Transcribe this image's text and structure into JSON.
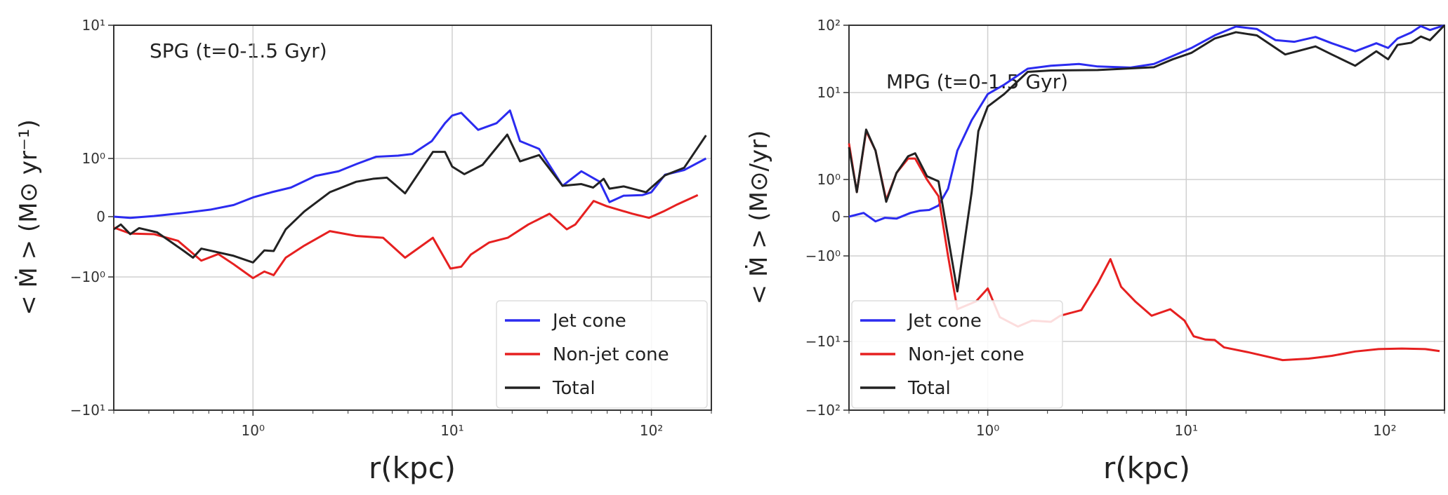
{
  "chart_data": [
    {
      "type": "line",
      "title": "SPG (t=0-1.5 Gyr)",
      "xlabel": "r(kpc)",
      "ylabel": "< Ṁ >  (M⊙ yr⁻¹)",
      "xscale": "log",
      "yscale": "symlog",
      "xlim": [
        0.2,
        200
      ],
      "ylim": [
        -10,
        10
      ],
      "xticks": [
        "10⁰",
        "10¹",
        "10²"
      ],
      "yticks": [
        "10¹",
        "10⁰",
        "0",
        "−10⁰",
        "−10¹"
      ],
      "grid": true,
      "legend_placement": "lower-right",
      "series": [
        {
          "name": "Jet cone",
          "color": "#2b2bf0",
          "x": [
            0.198,
            0.242,
            0.318,
            0.465,
            0.61,
            0.8,
            1,
            1.24,
            1.55,
            2.06,
            2.69,
            3.34,
            4.15,
            5.35,
            6.3,
            7.9,
            9.2,
            10,
            11.1,
            13.5,
            16.7,
            19.5,
            21.9,
            27.3,
            35.8,
            44.5,
            55,
            61.6,
            72.5,
            90,
            100,
            117,
            146,
            188
          ],
          "y": [
            0,
            -0.02,
            0.01,
            0.07,
            0.12,
            0.2,
            0.33,
            0.42,
            0.5,
            0.7,
            0.78,
            0.91,
            1.03,
            1.05,
            1.08,
            1.35,
            1.84,
            2.1,
            2.2,
            1.64,
            1.84,
            2.29,
            1.35,
            1.18,
            0.53,
            0.78,
            0.6,
            0.25,
            0.36,
            0.37,
            0.42,
            0.72,
            0.8,
            1.0
          ]
        },
        {
          "name": "Non-jet cone",
          "color": "#e62020",
          "x": [
            0.198,
            0.242,
            0.318,
            0.42,
            0.55,
            0.67,
            0.8,
            1,
            1.14,
            1.27,
            1.46,
            1.81,
            2.43,
            3.3,
            4.5,
            5.8,
            8,
            9.8,
            11.1,
            12.4,
            15.3,
            19,
            24.1,
            30.8,
            37.6,
            41.5,
            51.3,
            59.6,
            80.2,
            97.2,
            115,
            133,
            171
          ],
          "y": [
            -0.18,
            -0.28,
            -0.29,
            -0.4,
            -0.73,
            -0.62,
            -0.79,
            -1.02,
            -0.91,
            -0.97,
            -0.68,
            -0.48,
            -0.24,
            -0.32,
            -0.35,
            -0.68,
            -0.35,
            -0.86,
            -0.83,
            -0.63,
            -0.43,
            -0.35,
            -0.13,
            0.05,
            -0.21,
            -0.13,
            0.27,
            0.18,
            0.05,
            -0.02,
            0.09,
            0.2,
            0.37
          ]
        },
        {
          "name": "Total",
          "color": "#222222",
          "x": [
            0.198,
            0.217,
            0.242,
            0.268,
            0.33,
            0.38,
            0.45,
            0.5,
            0.55,
            0.8,
            1,
            1.14,
            1.27,
            1.46,
            1.81,
            2.43,
            3.3,
            4,
            4.7,
            5.8,
            8,
            9.2,
            10,
            11.5,
            14.2,
            18.9,
            21.9,
            27.3,
            35.8,
            44.5,
            51,
            57.6,
            61.6,
            72.5,
            94,
            117,
            146,
            188
          ],
          "y": [
            -0.21,
            -0.13,
            -0.29,
            -0.19,
            -0.26,
            -0.4,
            -0.57,
            -0.68,
            -0.53,
            -0.65,
            -0.76,
            -0.56,
            -0.57,
            -0.21,
            0.09,
            0.42,
            0.6,
            0.65,
            0.67,
            0.4,
            1.12,
            1.12,
            0.86,
            0.73,
            0.89,
            1.51,
            0.95,
            1.06,
            0.53,
            0.56,
            0.5,
            0.65,
            0.48,
            0.52,
            0.42,
            0.71,
            0.84,
            1.49
          ]
        }
      ]
    },
    {
      "type": "line",
      "title": "MPG (t=0-1.5 Gyr)",
      "xlabel": "r(kpc)",
      "ylabel": "< Ṁ >  (M⊙/yr)",
      "xscale": "log",
      "yscale": "symlog",
      "xlim": [
        0.2,
        200
      ],
      "ylim": [
        -100,
        100
      ],
      "xticks": [
        "10⁰",
        "10¹",
        "10²"
      ],
      "yticks": [
        "10²",
        "10¹",
        "10⁰",
        "0",
        "−10⁰",
        "−10¹",
        "−10²"
      ],
      "grid": true,
      "legend_placement": "lower-left",
      "series": [
        {
          "name": "Jet cone",
          "color": "#2b2bf0",
          "x": [
            0.2,
            0.237,
            0.272,
            0.303,
            0.347,
            0.408,
            0.455,
            0.507,
            0.565,
            0.631,
            0.703,
            0.83,
            1,
            1.21,
            1.59,
            2.08,
            2.88,
            3.58,
            5.24,
            6.87,
            8.55,
            10.6,
            13.9,
            17.8,
            22.7,
            28.2,
            35.1,
            44.8,
            54.1,
            71,
            90.7,
            104,
            116,
            136,
            152,
            169,
            200
          ],
          "y": [
            0,
            0.1,
            -0.12,
            -0.03,
            -0.05,
            0.1,
            0.16,
            0.18,
            0.3,
            0.75,
            2.15,
            4.8,
            9.6,
            13.1,
            22.6,
            25,
            26.6,
            24.4,
            23.5,
            26.6,
            34.9,
            45.8,
            70.6,
            95.7,
            87.8,
            60,
            56.8,
            67,
            54,
            41,
            54,
            46,
            63.4,
            78,
            97,
            85,
            109
          ]
        },
        {
          "name": "Non-jet cone",
          "color": "#e62020",
          "x": [
            0.2,
            0.219,
            0.244,
            0.272,
            0.308,
            0.347,
            0.397,
            0.431,
            0.494,
            0.565,
            0.631,
            0.703,
            0.873,
            1,
            1.15,
            1.42,
            1.67,
            2.08,
            2.32,
            2.96,
            3.58,
            4.15,
            4.7,
            5.53,
            6.69,
            8.31,
            9.8,
            10.9,
            12.5,
            13.9,
            15.5,
            20.4,
            30.6,
            41.3,
            54.1,
            71,
            93.2,
            122,
            160,
            189
          ],
          "y": [
            2.6,
            0.66,
            3.6,
            2.15,
            0.45,
            1.19,
            1.74,
            1.74,
            1.0,
            0.55,
            -1,
            -4.2,
            -3.4,
            -2.4,
            -5.2,
            -6.7,
            -5.7,
            -5.9,
            -5.0,
            -4.3,
            -2.1,
            -1.09,
            -2.3,
            -3.4,
            -5.0,
            -4.2,
            -5.7,
            -8.7,
            -9.5,
            -9.6,
            -12.2,
            -14.3,
            -18.7,
            -17.8,
            -16.2,
            -14,
            -12.9,
            -12.7,
            -12.9,
            -13.8
          ]
        },
        {
          "name": "Total",
          "color": "#222222",
          "x": [
            0.2,
            0.219,
            0.244,
            0.272,
            0.308,
            0.347,
            0.397,
            0.431,
            0.494,
            0.565,
            0.703,
            0.83,
            0.897,
            1,
            1.21,
            1.59,
            2.08,
            3.58,
            6.87,
            8.55,
            10.6,
            13.9,
            17.8,
            22.7,
            31.5,
            44.8,
            54.1,
            71,
            90.7,
            104,
            116,
            136,
            152,
            169,
            200
          ],
          "y": [
            2.35,
            0.66,
            3.75,
            2.15,
            0.4,
            1.19,
            1.85,
            2.0,
            1.09,
            0.95,
            -2.6,
            0.66,
            3.6,
            6.9,
            9.6,
            20.3,
            21.3,
            21.6,
            23.8,
            31.2,
            38.8,
            63.4,
            78.8,
            70.6,
            36.8,
            48.5,
            36.8,
            25,
            41,
            31.2,
            51,
            55,
            68,
            60,
            105
          ]
        }
      ]
    }
  ]
}
